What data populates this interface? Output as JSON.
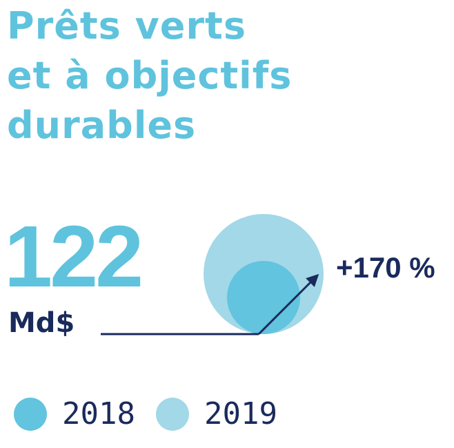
{
  "title_lines": [
    "Prêts verts",
    "et à objectifs",
    "durables"
  ],
  "headline": {
    "value": "122",
    "unit": "Md$",
    "growth": "+170 %"
  },
  "colors": {
    "title": "#5fc3dd",
    "accent_dark": "#1a2a5c",
    "series_2018": "#62c4de",
    "series_2019": "#a2d8e8"
  },
  "chart_data": {
    "type": "bubble",
    "title": "Prêts verts et à objectifs durables",
    "series": [
      {
        "name": "2018",
        "color": "#62c4de"
      },
      {
        "name": "2019",
        "value": 122,
        "unit": "Md$",
        "color": "#a2d8e8"
      }
    ],
    "annotation": "+170 %"
  },
  "legend": {
    "items": [
      {
        "label": "2018",
        "color": "#62c4de"
      },
      {
        "label": "2019",
        "color": "#a2d8e8"
      }
    ]
  }
}
